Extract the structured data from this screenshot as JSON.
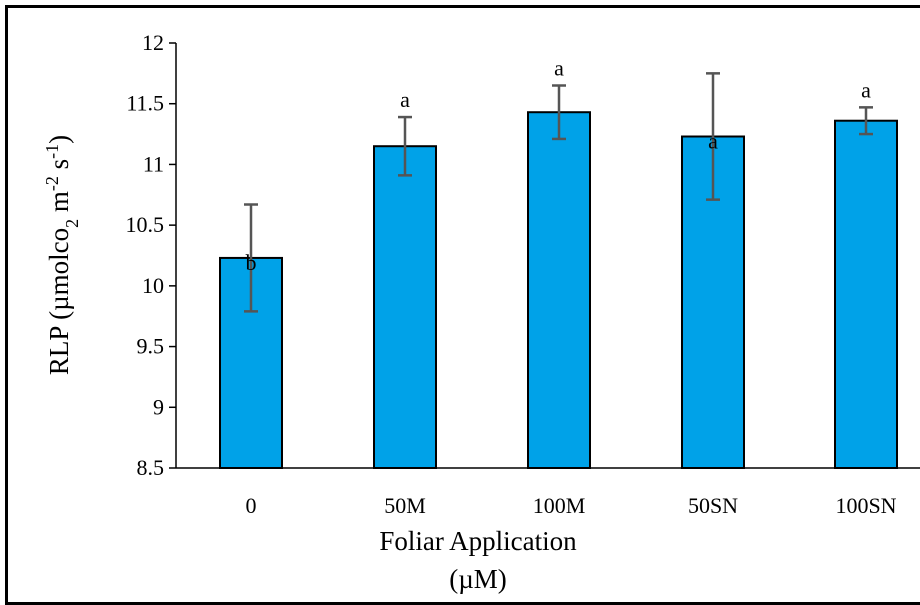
{
  "chart_data": {
    "type": "bar",
    "categories": [
      "0",
      "50M",
      "100M",
      "50SN",
      "100SN"
    ],
    "values": [
      10.23,
      11.15,
      11.43,
      11.23,
      11.36
    ],
    "errors": [
      0.44,
      0.24,
      0.22,
      0.52,
      0.11
    ],
    "significance": [
      "b",
      "a",
      "a",
      "a",
      "a"
    ],
    "ylim": [
      8.5,
      12
    ],
    "yticks": [
      "8.5",
      "9",
      "9.5",
      "10",
      "10.5",
      "11",
      "11.5",
      "12"
    ],
    "ylabel": {
      "prefix": "RLP (µmolco",
      "sub": "2",
      "mid": " m",
      "sup1": "-2",
      "mid2": " s",
      "sup2": "-1",
      "suffix": ")"
    },
    "xlabel": {
      "line1": "Foliar Application",
      "line2": "(µM)"
    },
    "bar_color": "#00A2E8",
    "error_color": "#555555",
    "grid": false,
    "legend": "none"
  }
}
